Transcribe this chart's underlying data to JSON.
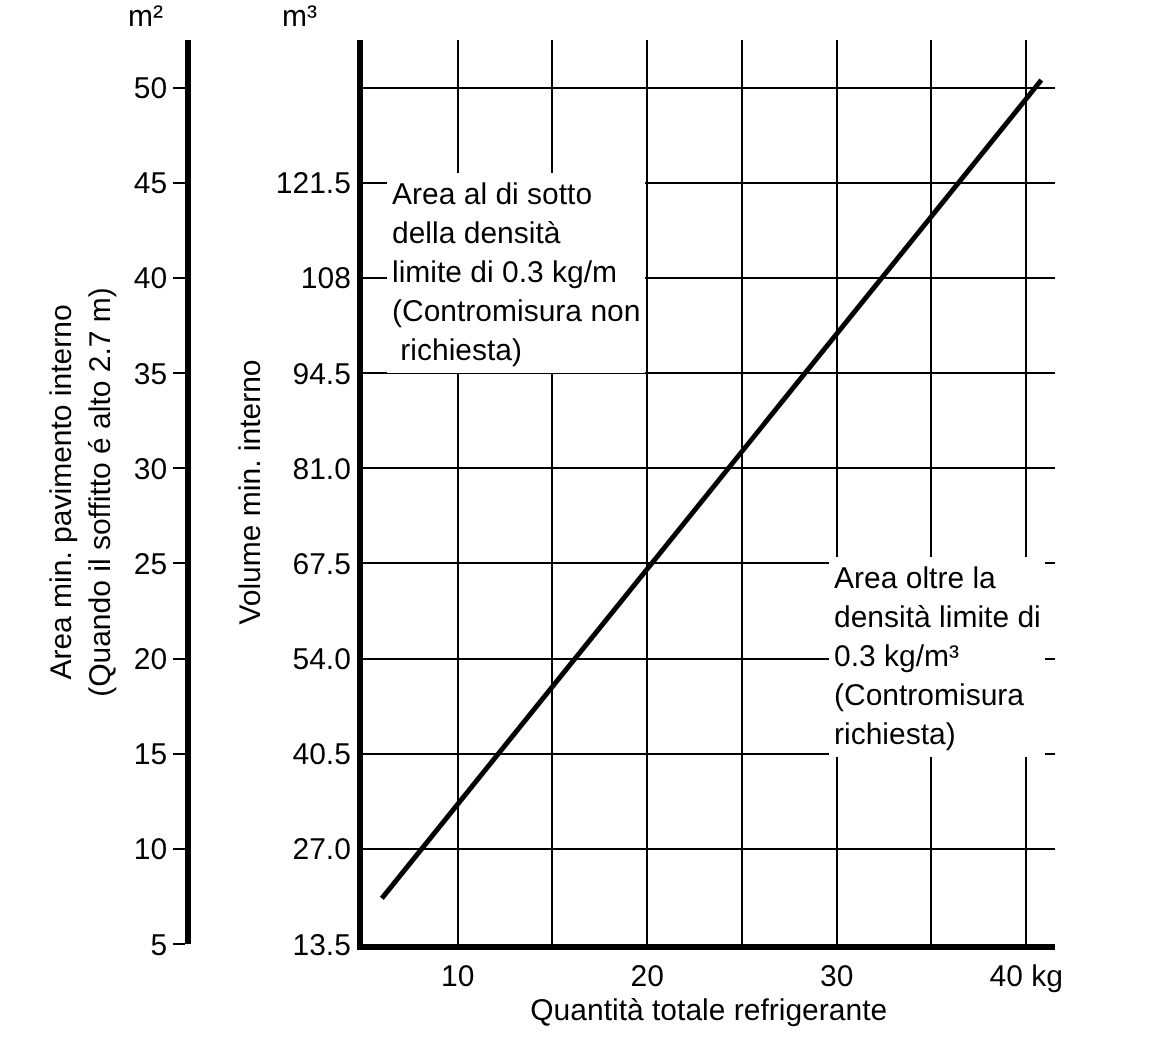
{
  "chart_data": {
    "type": "line",
    "xlabel": "Quantità totale refrigerante",
    "ylabel": "Area min. pavimento interno\n(Quando il soffitto é alto 2.7 m)",
    "y2label": "Volume min. interno",
    "x": [
      6,
      40.8
    ],
    "series": [
      {
        "color": "#000000",
        "values": [
          7.4,
          50.4
        ]
      }
    ],
    "xlim": [
      5,
      41.5
    ],
    "xticks": [
      10,
      {
        "value": 15,
        "label": null
      },
      20,
      {
        "value": 25,
        "label": null
      },
      30,
      {
        "value": 35,
        "label": null
      },
      {
        "value": 40,
        "label": "40 kg"
      }
    ],
    "ylim": [
      5,
      52.5
    ],
    "yticks": [
      5,
      10,
      15,
      20,
      25,
      30,
      35,
      40,
      45,
      50
    ],
    "y2lim": [
      13.5,
      141.75
    ],
    "y2ticks": [
      13.5,
      {
        "value": 27,
        "label": "27.0"
      },
      40.5,
      {
        "value": 54,
        "label": "54.0"
      },
      67.5,
      {
        "value": 81,
        "label": "81.0"
      },
      94.5,
      108,
      121.5,
      {
        "value": 135,
        "label": null
      }
    ],
    "grid": true,
    "marker": "none",
    "line_style": "solid",
    "annotations": [
      "m²",
      "m³",
      "Area al di sotto\ndella densità\nlimite di 0.3 kg/m\n(Contromisura non\n richiesta)",
      "Area oltre la\ndensità limite di\n0.3 kg/m³\n(Contromisura\nrichiesta)"
    ]
  }
}
